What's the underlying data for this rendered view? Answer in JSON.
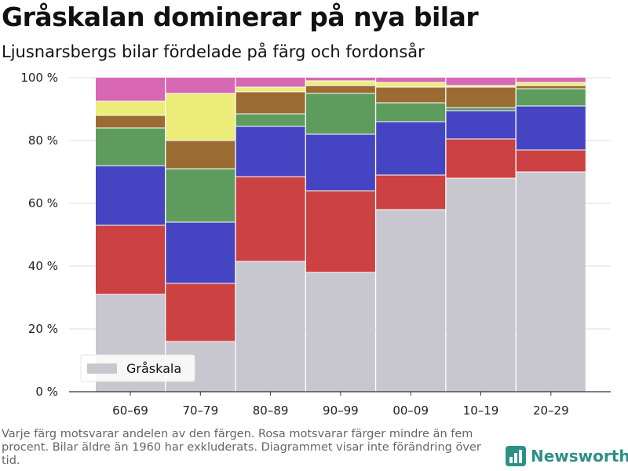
{
  "title": "Gråskalan dominerar på nya bilar",
  "subtitle": "Ljusnarsbergs bilar fördelade på färg och fordonsår",
  "footnote": "Varje färg motsvarar andelen av den färgen. Rosa motsvarar färger mindre än fem procent. Bilar äldre än 1960 har exkluderats. Diagrammet visar inte förändring över tid.",
  "brand": {
    "name": "Newsworthy",
    "icon": "bar-chart-logo-icon"
  },
  "chart_data": {
    "type": "bar",
    "stacked": true,
    "categories": [
      "60–69",
      "70–79",
      "80–89",
      "90–99",
      "00–09",
      "10–19",
      "20–29"
    ],
    "ylim": [
      0,
      100
    ],
    "yticks": [
      0,
      20,
      40,
      60,
      80,
      100
    ],
    "ytick_labels": [
      "0 %",
      "20 %",
      "40 %",
      "60 %",
      "80 %",
      "100 %"
    ],
    "grid": true,
    "legend": {
      "position": "bottom-left",
      "entries": [
        "Gråskala"
      ]
    },
    "series": [
      {
        "name": "Gråskala",
        "color": "#c8c7d0",
        "values": [
          31,
          16,
          41.5,
          38,
          58,
          68,
          70
        ]
      },
      {
        "color": "#cc4142",
        "values": [
          22,
          18.5,
          27,
          26,
          11,
          12.5,
          7
        ]
      },
      {
        "color": "#4545c4",
        "values": [
          19,
          19.5,
          16,
          18,
          17,
          9,
          14
        ]
      },
      {
        "color": "#5d9c5d",
        "values": [
          12,
          17,
          4,
          13,
          6,
          1,
          5.5
        ]
      },
      {
        "color": "#9c6b34",
        "values": [
          4,
          9,
          7,
          2.5,
          5,
          6.5,
          1
        ]
      },
      {
        "color": "#ebed78",
        "values": [
          4.5,
          15,
          1.5,
          1.5,
          1.5,
          0.5,
          1
        ]
      },
      {
        "color": "#d867b4",
        "values": [
          7.5,
          5,
          3,
          1,
          1.5,
          2.5,
          1.5
        ]
      }
    ]
  }
}
